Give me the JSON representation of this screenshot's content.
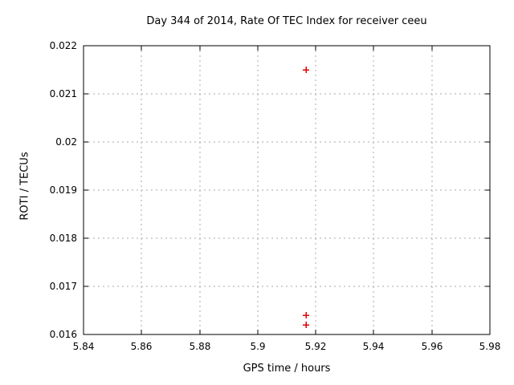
{
  "chart_data": {
    "type": "scatter",
    "title": "Day 344 of 2014, Rate Of TEC Index for receiver ceeu",
    "xlabel": "GPS time / hours",
    "ylabel": "ROTI / TECUs",
    "xlim": [
      5.84,
      5.98
    ],
    "ylim": [
      0.016,
      0.022
    ],
    "x_tick_values": [
      5.84,
      5.86,
      5.88,
      5.9,
      5.92,
      5.94,
      5.96,
      5.98
    ],
    "x_tick_labels": [
      "5.84",
      "5.86",
      "5.88",
      "5.9",
      "5.92",
      "5.94",
      "5.96",
      "5.98"
    ],
    "y_tick_values": [
      0.016,
      0.017,
      0.018,
      0.019,
      0.02,
      0.021,
      0.022
    ],
    "y_tick_labels": [
      "0.016",
      "0.017",
      "0.018",
      "0.019",
      "0.02",
      "0.021",
      "0.022"
    ],
    "grid": true,
    "grid_style": "dotted",
    "legend": "none",
    "marker": "plus",
    "series": [
      {
        "name": "ROTI",
        "points": [
          [
            5.9167,
            0.0215
          ],
          [
            5.9167,
            0.0164
          ],
          [
            5.9167,
            0.0162
          ]
        ]
      }
    ],
    "colors": {
      "marker": "#e00000",
      "grid": "#a8a8a8",
      "axis": "#000000",
      "text": "#000000",
      "background": "#ffffff"
    }
  }
}
